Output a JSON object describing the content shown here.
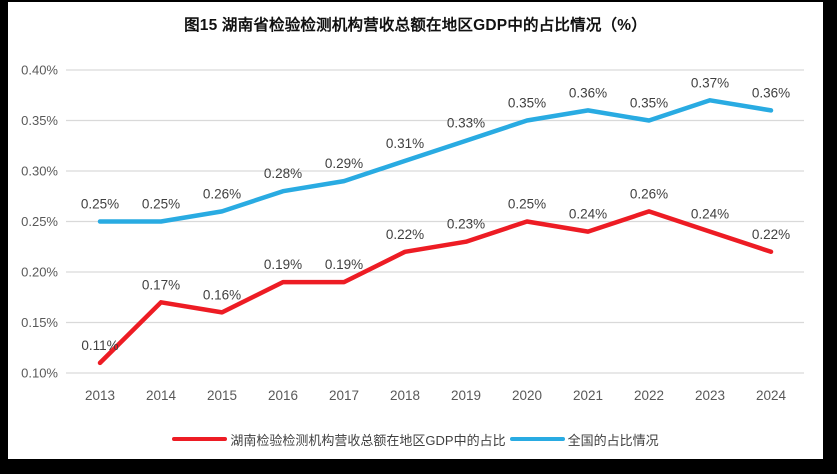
{
  "title": "图15 湖南省检验检测机构营收总额在地区GDP中的占比情况（%）",
  "colors": {
    "frame_border": "#000000",
    "canvas_background": "#ffffff",
    "gridline": "#d9d9d9",
    "axis_text": "#595959",
    "data_label_text": "#404040",
    "title_text": "#111111",
    "series_hunan": "#ed1c24",
    "series_national": "#29abe2"
  },
  "chart_data": {
    "type": "line",
    "title": "图15 湖南省检验检测机构营收总额在地区GDP中的占比情况（%）",
    "x": [
      "2013",
      "2014",
      "2015",
      "2016",
      "2017",
      "2018",
      "2019",
      "2020",
      "2021",
      "2022",
      "2023",
      "2024"
    ],
    "series": [
      {
        "name": "湖南检验检测机构营收总额在地区GDP中的占比",
        "color": "#ed1c24",
        "values": [
          0.11,
          0.17,
          0.16,
          0.19,
          0.19,
          0.22,
          0.23,
          0.25,
          0.24,
          0.26,
          0.24,
          0.22
        ],
        "labels": [
          "0.11%",
          "0.17%",
          "0.16%",
          "0.19%",
          "0.19%",
          "0.22%",
          "0.23%",
          "0.25%",
          "0.24%",
          "0.26%",
          "0.24%",
          "0.22%"
        ]
      },
      {
        "name": "全国的占比情况",
        "color": "#29abe2",
        "values": [
          0.25,
          0.25,
          0.26,
          0.28,
          0.29,
          0.31,
          0.33,
          0.35,
          0.36,
          0.35,
          0.37,
          0.36
        ],
        "labels": [
          "0.25%",
          "0.25%",
          "0.26%",
          "0.28%",
          "0.29%",
          "0.31%",
          "0.33%",
          "0.35%",
          "0.36%",
          "0.35%",
          "0.37%",
          "0.36%"
        ]
      }
    ],
    "ylim": [
      0.1,
      0.4
    ],
    "yticks": [
      {
        "value": 0.1,
        "label": "0.10%"
      },
      {
        "value": 0.15,
        "label": "0.15%"
      },
      {
        "value": 0.2,
        "label": "0.20%"
      },
      {
        "value": 0.25,
        "label": "0.25%"
      },
      {
        "value": 0.3,
        "label": "0.30%"
      },
      {
        "value": 0.35,
        "label": "0.35%"
      },
      {
        "value": 0.4,
        "label": "0.40%"
      }
    ],
    "grid": true,
    "legend_position": "bottom",
    "data_labels_shown": true
  }
}
